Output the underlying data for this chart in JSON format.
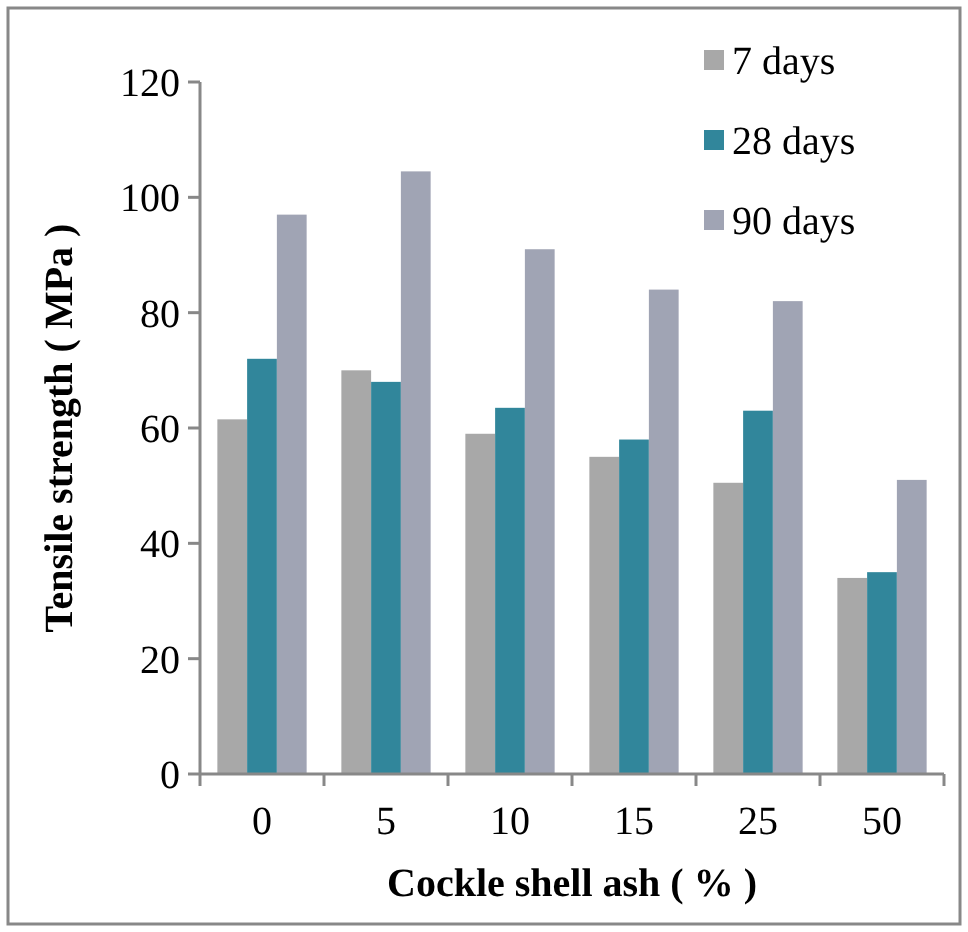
{
  "chart_data": {
    "type": "bar",
    "xlabel": "Cockle shell ash ( % )",
    "ylabel": "Tensile strength ( MPa )",
    "categories": [
      "0",
      "5",
      "10",
      "15",
      "25",
      "50"
    ],
    "series": [
      {
        "name": "7 days",
        "color": "#a8a8a8",
        "values": [
          61.5,
          70,
          59,
          55,
          50.5,
          34
        ]
      },
      {
        "name": "28 days",
        "color": "#31869b",
        "values": [
          72,
          68,
          63.5,
          58,
          63,
          35
        ]
      },
      {
        "name": "90 days",
        "color": "#a0a4b4",
        "values": [
          97,
          104.5,
          91,
          84,
          82,
          51
        ]
      }
    ],
    "ylim": [
      0,
      120
    ],
    "yticks": [
      0,
      20,
      40,
      60,
      80,
      100,
      120
    ],
    "grid": false,
    "legend": "top right"
  }
}
